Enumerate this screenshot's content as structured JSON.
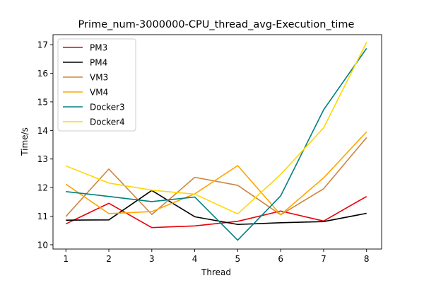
{
  "chart_data": {
    "type": "line",
    "title": "Prime_num-3000000-CPU_thread_avg-Execution_time",
    "xlabel": "Thread",
    "ylabel": "Time/s",
    "x": [
      1,
      2,
      3,
      4,
      5,
      6,
      7,
      8
    ],
    "xlim": [
      0.7,
      8.35
    ],
    "ylim": [
      9.85,
      17.35
    ],
    "xticks": [
      "1",
      "2",
      "3",
      "4",
      "5",
      "6",
      "7",
      "8"
    ],
    "yticks": [
      "10",
      "11",
      "12",
      "13",
      "14",
      "15",
      "16",
      "17"
    ],
    "grid": false,
    "legend_position": "upper left",
    "series": [
      {
        "name": "PM3",
        "color": "#e8000b",
        "values": [
          10.73,
          11.45,
          10.6,
          10.66,
          10.82,
          11.18,
          10.83,
          11.69
        ]
      },
      {
        "name": "PM4",
        "color": "#000000",
        "values": [
          10.86,
          10.87,
          11.9,
          10.98,
          10.71,
          10.77,
          10.81,
          11.1
        ]
      },
      {
        "name": "VM3",
        "color": "#cd853f",
        "values": [
          10.99,
          12.65,
          11.06,
          12.36,
          12.08,
          11.05,
          11.96,
          13.75
        ]
      },
      {
        "name": "VM4",
        "color": "#ffa500",
        "values": [
          12.12,
          11.09,
          11.16,
          11.78,
          12.77,
          11.05,
          12.34,
          13.95
        ]
      },
      {
        "name": "Docker3",
        "color": "#008080",
        "values": [
          11.86,
          11.69,
          11.51,
          11.67,
          10.16,
          11.71,
          14.72,
          16.87
        ]
      },
      {
        "name": "Docker4",
        "color": "#ffd700",
        "values": [
          12.76,
          12.16,
          11.91,
          11.77,
          11.08,
          12.46,
          14.09,
          17.08
        ]
      }
    ]
  }
}
